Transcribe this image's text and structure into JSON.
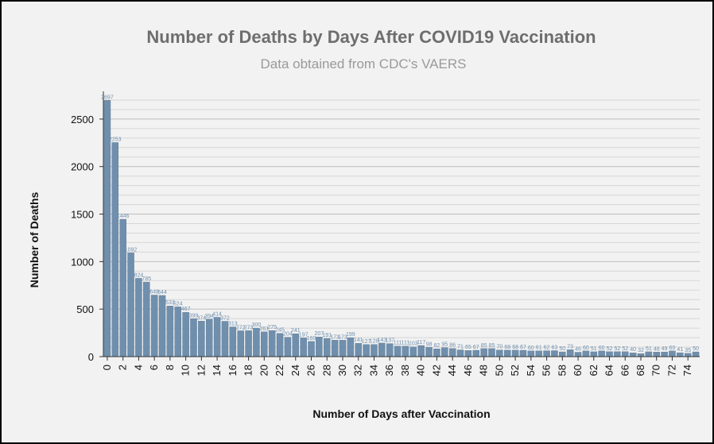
{
  "chart_data": {
    "type": "bar",
    "title": "Number of Deaths by Days After COVID19 Vaccination",
    "subtitle": "Data obtained from CDC's VAERS",
    "xlabel": "Number of Days after Vaccination",
    "ylabel": "Number of Deaths",
    "ylim": [
      0,
      2750
    ],
    "yticks": [
      0,
      500,
      1000,
      1500,
      2000,
      2500
    ],
    "grid": true,
    "bar_color": "#6f8fad",
    "categories": [
      "0",
      "1",
      "2",
      "3",
      "4",
      "5",
      "6",
      "7",
      "8",
      "9",
      "10",
      "11",
      "12",
      "13",
      "14",
      "15",
      "16",
      "17",
      "18",
      "19",
      "20",
      "21",
      "22",
      "23",
      "24",
      "25",
      "26",
      "27",
      "28",
      "29",
      "30",
      "31",
      "32",
      "33",
      "34",
      "35",
      "36",
      "37",
      "38",
      "39",
      "40",
      "41",
      "42",
      "43",
      "44",
      "45",
      "46",
      "47",
      "48",
      "49",
      "50",
      "51",
      "52",
      "53",
      "54",
      "55",
      "56",
      "57",
      "58",
      "59",
      "60",
      "61",
      "62",
      "63",
      "64",
      "65",
      "66",
      "67",
      "68",
      "69",
      "70",
      "71",
      "72",
      "73",
      "74",
      "75"
    ],
    "xtick_labels": [
      "0",
      "2",
      "4",
      "6",
      "8",
      "10",
      "12",
      "14",
      "16",
      "18",
      "20",
      "22",
      "24",
      "26",
      "28",
      "30",
      "32",
      "34",
      "36",
      "38",
      "40",
      "42",
      "44",
      "46",
      "48",
      "50",
      "52",
      "54",
      "56",
      "58",
      "60",
      "62",
      "64",
      "66",
      "68",
      "70",
      "72",
      "74"
    ],
    "values": [
      2697,
      2253,
      1446,
      1092,
      824,
      785,
      648,
      644,
      533,
      524,
      467,
      399,
      374,
      394,
      414,
      372,
      313,
      272,
      273,
      300,
      261,
      275,
      245,
      204,
      241,
      197,
      160,
      207,
      191,
      173,
      173,
      199,
      141,
      127,
      128,
      143,
      137,
      111,
      111,
      103,
      117,
      98,
      82,
      95,
      86,
      71,
      65,
      67,
      85,
      85,
      70,
      68,
      68,
      67,
      60,
      61,
      62,
      63,
      50,
      73,
      46,
      60,
      51,
      60,
      52,
      52,
      52,
      40,
      32,
      51,
      48,
      49,
      60,
      41,
      35,
      50
    ],
    "data_labels": [
      "2697",
      "2253",
      "1446",
      "1092",
      "824",
      "785",
      "648",
      "644",
      "533",
      "524",
      "467",
      "399",
      "374",
      "394",
      "414",
      "372",
      "313",
      "272",
      "273",
      "300",
      "261",
      "275",
      "245",
      "204",
      "241",
      "197",
      "160",
      "207",
      "191",
      "173",
      "173",
      "199",
      "141",
      "127",
      "128",
      "143",
      "137",
      "111",
      "111",
      "103",
      "117",
      "98",
      "82",
      "95",
      "86",
      "71",
      "65",
      "67",
      "85",
      "85",
      "70",
      "68",
      "68",
      "67",
      "60",
      "61",
      "62",
      "63",
      "50",
      "73",
      "46",
      "60",
      "51",
      "60",
      "52",
      "52",
      "52",
      "40",
      "32",
      "51",
      "48",
      "49",
      "60",
      "41",
      "35",
      "50"
    ]
  }
}
